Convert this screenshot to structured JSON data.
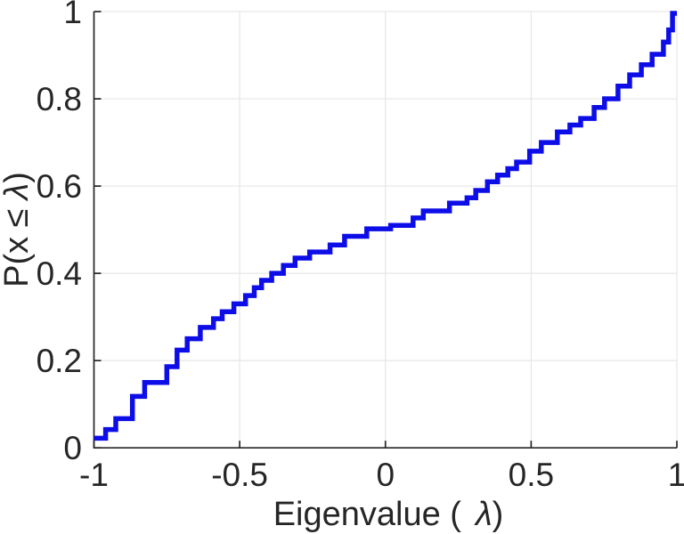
{
  "chart_data": {
    "type": "line",
    "subtype": "empirical-cdf-stairs",
    "title": "",
    "xlabel": "Eigenvalue ( λ)",
    "ylabel": "P(x ≤ λ)",
    "xlabel_parts": {
      "pre": "Eigenvalue (",
      "lambda": "λ",
      "post": ")"
    },
    "ylabel_parts": {
      "pre": "P(x ≤",
      "lambda": "λ",
      "post": ")"
    },
    "xlim": [
      -1,
      1
    ],
    "ylim": [
      0,
      1
    ],
    "x_ticks": [
      -1,
      -0.5,
      0,
      0.5,
      1
    ],
    "x_tick_labels": [
      "-1",
      "-0.5",
      "0",
      "0.5",
      "1"
    ],
    "y_ticks": [
      0,
      0.2,
      0.4,
      0.6,
      0.8,
      1
    ],
    "y_tick_labels": [
      "0",
      "0.2",
      "0.4",
      "0.6",
      "0.8",
      "1"
    ],
    "grid": true,
    "legend_position": "none",
    "line_color": "#0d0de8",
    "axis_color": "#262626",
    "grid_color": "#e6e6e6",
    "background_color": "#ffffff",
    "series": [
      {
        "name": "eigenvalue-ecdf",
        "points": [
          [
            -1.0,
            0.022
          ],
          [
            -0.96,
            0.042
          ],
          [
            -0.925,
            0.067
          ],
          [
            -0.868,
            0.118
          ],
          [
            -0.826,
            0.15
          ],
          [
            -0.75,
            0.186
          ],
          [
            -0.715,
            0.224
          ],
          [
            -0.68,
            0.25
          ],
          [
            -0.635,
            0.276
          ],
          [
            -0.59,
            0.296
          ],
          [
            -0.56,
            0.312
          ],
          [
            -0.52,
            0.33
          ],
          [
            -0.48,
            0.349
          ],
          [
            -0.45,
            0.367
          ],
          [
            -0.425,
            0.384
          ],
          [
            -0.39,
            0.4
          ],
          [
            -0.35,
            0.418
          ],
          [
            -0.31,
            0.435
          ],
          [
            -0.26,
            0.449
          ],
          [
            -0.19,
            0.465
          ],
          [
            -0.14,
            0.485
          ],
          [
            -0.064,
            0.502
          ],
          [
            0.018,
            0.51
          ],
          [
            0.095,
            0.527
          ],
          [
            0.13,
            0.543
          ],
          [
            0.22,
            0.561
          ],
          [
            0.28,
            0.573
          ],
          [
            0.31,
            0.59
          ],
          [
            0.35,
            0.61
          ],
          [
            0.385,
            0.625
          ],
          [
            0.42,
            0.64
          ],
          [
            0.45,
            0.655
          ],
          [
            0.495,
            0.68
          ],
          [
            0.535,
            0.7
          ],
          [
            0.59,
            0.724
          ],
          [
            0.633,
            0.74
          ],
          [
            0.67,
            0.755
          ],
          [
            0.716,
            0.78
          ],
          [
            0.752,
            0.8
          ],
          [
            0.798,
            0.829
          ],
          [
            0.838,
            0.855
          ],
          [
            0.878,
            0.878
          ],
          [
            0.915,
            0.902
          ],
          [
            0.954,
            0.93
          ],
          [
            0.972,
            0.958
          ],
          [
            0.985,
            0.996
          ]
        ]
      }
    ]
  }
}
